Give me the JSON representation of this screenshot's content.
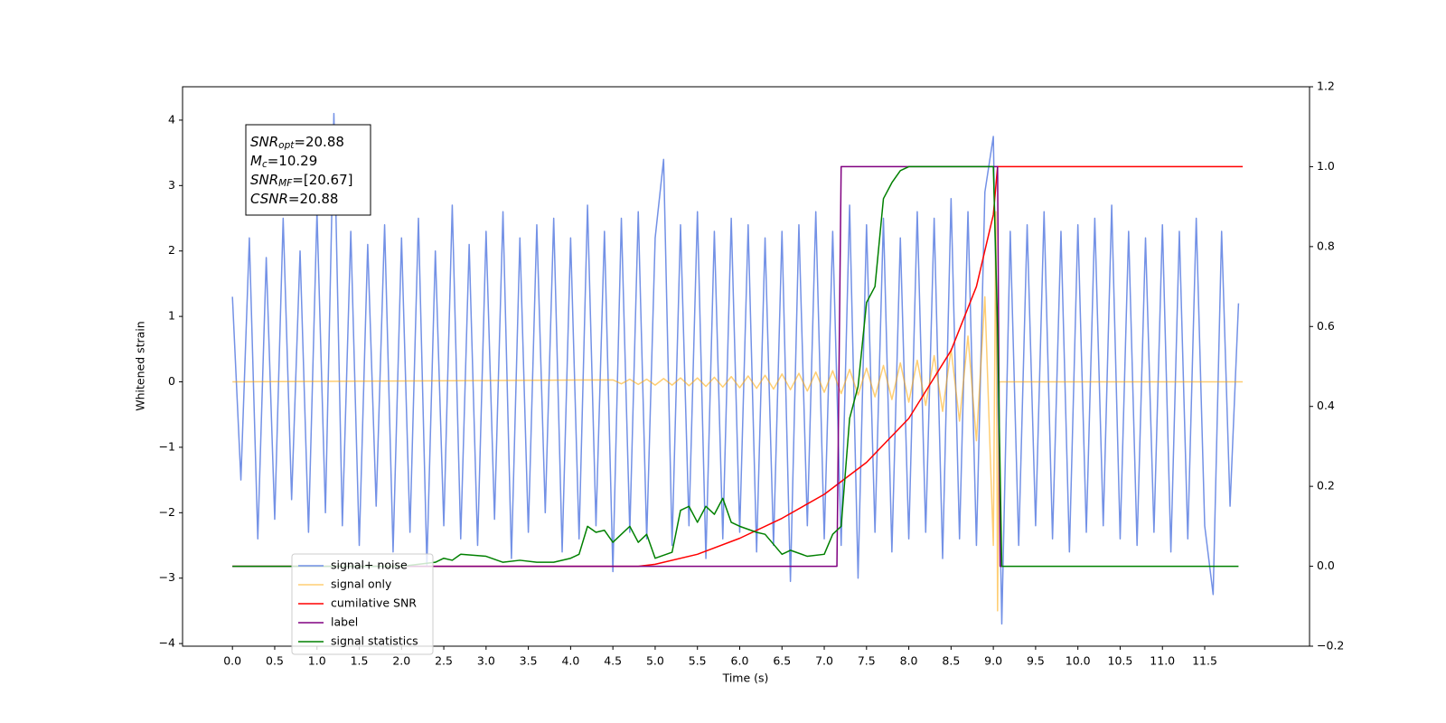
{
  "chart_data": {
    "type": "line",
    "xlabel": "Time (s)",
    "ylabel": "Whitened strain",
    "xlim": [
      -0.59,
      12.74
    ],
    "ylim": [
      -4.04,
      4.51
    ],
    "y2lim": [
      -0.2,
      1.2
    ],
    "xticks": [
      {
        "value": 0,
        "label": "0.0"
      },
      0.5,
      {
        "value": 1,
        "label": "1.0"
      },
      1.5,
      {
        "value": 2,
        "label": "2.0"
      },
      2.5,
      {
        "value": 3,
        "label": "3.0"
      },
      3.5,
      {
        "value": 4,
        "label": "4.0"
      },
      4.5,
      {
        "value": 5,
        "label": "5.0"
      },
      5.5,
      {
        "value": 6,
        "label": "6.0"
      },
      6.5,
      {
        "value": 7,
        "label": "7.0"
      },
      7.5,
      {
        "value": 8,
        "label": "8.0"
      },
      8.5,
      {
        "value": 9,
        "label": "9.0"
      },
      9.5,
      {
        "value": 10,
        "label": "10.0"
      },
      10.5,
      {
        "value": 11,
        "label": "11.0"
      },
      11.5
    ],
    "yticks": [
      {
        "value": -4,
        "label": "−4"
      },
      {
        "value": -3,
        "label": "−3"
      },
      {
        "value": -2,
        "label": "−2"
      },
      {
        "value": -1,
        "label": "−1"
      },
      0,
      1,
      2,
      3,
      4
    ],
    "y2ticks": [
      {
        "value": -0.2,
        "label": "−0.2"
      },
      {
        "value": 0,
        "label": "0.0"
      },
      0.2,
      0.4,
      0.6,
      0.8,
      {
        "value": 1,
        "label": "1.0"
      },
      1.2
    ],
    "annotation": [
      {
        "text": "SNR",
        "sub": "opt",
        "value": "=20.88"
      },
      {
        "text": "M",
        "sub": "c",
        "value": "=10.29"
      },
      {
        "text": "SNR",
        "sub": "MF",
        "value": "=[20.67]"
      },
      {
        "text": "CSNR",
        "value": "=20.88"
      }
    ],
    "series": [
      {
        "name": "signal+ noise",
        "color": "#7391e6",
        "alpha": 1,
        "x": [
          0.0,
          0.1,
          0.2,
          0.3,
          0.4,
          0.5,
          0.6,
          0.7,
          0.8,
          0.9,
          1.0,
          1.1,
          1.2,
          1.3,
          1.4,
          1.5,
          1.6,
          1.7,
          1.8,
          1.9,
          2.0,
          2.1,
          2.2,
          2.3,
          2.4,
          2.5,
          2.6,
          2.7,
          2.8,
          2.9,
          3.0,
          3.1,
          3.2,
          3.3,
          3.4,
          3.5,
          3.6,
          3.7,
          3.8,
          3.9,
          4.0,
          4.1,
          4.2,
          4.3,
          4.4,
          4.5,
          4.6,
          4.7,
          4.8,
          4.9,
          5.0,
          5.1,
          5.2,
          5.3,
          5.4,
          5.5,
          5.6,
          5.7,
          5.8,
          5.9,
          6.0,
          6.1,
          6.2,
          6.3,
          6.4,
          6.5,
          6.6,
          6.7,
          6.8,
          6.9,
          7.0,
          7.1,
          7.2,
          7.3,
          7.4,
          7.5,
          7.6,
          7.7,
          7.8,
          7.9,
          8.0,
          8.1,
          8.2,
          8.3,
          8.4,
          8.5,
          8.6,
          8.7,
          8.8,
          8.9,
          9.0,
          9.1,
          9.2,
          9.3,
          9.4,
          9.5,
          9.6,
          9.7,
          9.8,
          9.9,
          10.0,
          10.1,
          10.2,
          10.3,
          10.4,
          10.5,
          10.6,
          10.7,
          10.8,
          10.9,
          11.0,
          11.1,
          11.2,
          11.3,
          11.4,
          11.5,
          11.6,
          11.7,
          11.8,
          11.9
        ],
        "values": [
          1.3,
          -1.5,
          2.2,
          -2.4,
          1.9,
          -2.1,
          2.5,
          -1.8,
          2.0,
          -2.3,
          2.6,
          -2.0,
          4.1,
          -2.2,
          2.3,
          -2.5,
          2.1,
          -1.9,
          2.4,
          -2.6,
          2.2,
          -2.3,
          2.5,
          -2.8,
          2.0,
          -2.2,
          2.7,
          -2.4,
          2.1,
          -2.5,
          2.3,
          -2.1,
          2.6,
          -2.7,
          2.2,
          -2.3,
          2.4,
          -2.0,
          2.5,
          -2.6,
          2.2,
          -2.4,
          2.7,
          -2.2,
          2.3,
          -2.9,
          2.5,
          -2.3,
          2.6,
          -2.4,
          2.2,
          3.4,
          -2.5,
          2.4,
          -2.2,
          2.6,
          -2.7,
          2.3,
          -2.4,
          2.5,
          -2.3,
          2.4,
          -2.6,
          2.2,
          -2.5,
          2.3,
          -3.05,
          2.4,
          -2.2,
          2.6,
          -2.4,
          2.3,
          -2.5,
          2.7,
          -3.0,
          2.4,
          -2.3,
          2.5,
          -2.6,
          2.2,
          -2.4,
          2.6,
          -2.3,
          2.5,
          -2.7,
          2.8,
          -2.4,
          2.6,
          -2.5,
          2.9,
          3.75,
          -3.7,
          2.3,
          -2.5,
          2.4,
          -2.2,
          2.6,
          -2.4,
          2.3,
          -2.6,
          2.4,
          -2.3,
          2.5,
          -2.2,
          2.7,
          -2.4,
          2.3,
          -2.5,
          2.2,
          -2.3,
          2.4,
          -2.6,
          2.3,
          -2.4,
          2.5,
          -2.2,
          -3.25,
          2.3,
          -1.9,
          1.2
        ]
      },
      {
        "name": "signal only",
        "color": "#ffa500",
        "alpha": 0.55,
        "x": [
          0,
          4.5,
          4.6,
          4.7,
          4.8,
          4.9,
          5.0,
          5.1,
          5.2,
          5.3,
          5.4,
          5.5,
          5.6,
          5.7,
          5.8,
          5.9,
          6.0,
          6.1,
          6.2,
          6.3,
          6.4,
          6.5,
          6.6,
          6.7,
          6.8,
          6.9,
          7.0,
          7.1,
          7.2,
          7.3,
          7.4,
          7.5,
          7.6,
          7.7,
          7.8,
          7.9,
          8.0,
          8.1,
          8.2,
          8.3,
          8.4,
          8.5,
          8.6,
          8.7,
          8.8,
          8.9,
          9.0,
          9.03,
          9.05,
          9.07,
          11.95
        ],
        "values": [
          0,
          0.03,
          -0.03,
          0.04,
          -0.04,
          0.04,
          -0.05,
          0.05,
          -0.05,
          0.06,
          -0.06,
          0.06,
          -0.07,
          0.07,
          -0.08,
          0.08,
          -0.09,
          0.09,
          -0.1,
          0.1,
          -0.11,
          0.12,
          -0.12,
          0.13,
          -0.14,
          0.15,
          -0.16,
          0.17,
          -0.18,
          0.19,
          -0.2,
          0.21,
          -0.23,
          0.25,
          -0.27,
          0.29,
          -0.31,
          0.33,
          -0.36,
          0.4,
          -0.45,
          0.5,
          -0.6,
          0.7,
          -0.9,
          1.3,
          -2.5,
          2.6,
          -3.5,
          0,
          0
        ]
      },
      {
        "name": "cumilative SNR",
        "color": "#ff0000",
        "alpha": 1,
        "axis": "y2",
        "x": [
          0,
          4.8,
          5.0,
          5.5,
          6.0,
          6.5,
          7.0,
          7.5,
          8.0,
          8.5,
          8.8,
          9.0,
          9.05,
          11.95
        ],
        "values": [
          0,
          0,
          0.005,
          0.03,
          0.07,
          0.12,
          0.18,
          0.26,
          0.37,
          0.54,
          0.7,
          0.88,
          1.0,
          1.0
        ]
      },
      {
        "name": "label",
        "color": "#800080",
        "alpha": 1,
        "axis": "y2",
        "x": [
          0,
          7.15,
          7.2,
          9.05,
          9.08,
          9.1
        ],
        "values": [
          0,
          0,
          1,
          1,
          0,
          0
        ]
      },
      {
        "name": "signal statistics",
        "color": "#008000",
        "alpha": 1,
        "axis": "y2",
        "x": [
          0,
          2.0,
          2.2,
          2.4,
          2.5,
          2.6,
          2.7,
          3.0,
          3.2,
          3.4,
          3.6,
          3.8,
          4.0,
          4.1,
          4.2,
          4.3,
          4.4,
          4.5,
          4.6,
          4.7,
          4.8,
          4.9,
          5.0,
          5.2,
          5.3,
          5.4,
          5.5,
          5.6,
          5.7,
          5.8,
          5.9,
          6.0,
          6.2,
          6.3,
          6.5,
          6.6,
          6.8,
          7.0,
          7.1,
          7.2,
          7.3,
          7.4,
          7.5,
          7.6,
          7.7,
          7.8,
          7.9,
          8.0,
          8.5,
          9.0,
          9.05,
          9.1,
          11.9
        ],
        "values": [
          0,
          0,
          0.005,
          0.01,
          0.02,
          0.015,
          0.03,
          0.025,
          0.01,
          0.015,
          0.01,
          0.01,
          0.02,
          0.03,
          0.1,
          0.085,
          0.09,
          0.06,
          0.08,
          0.1,
          0.06,
          0.08,
          0.02,
          0.035,
          0.14,
          0.15,
          0.11,
          0.15,
          0.13,
          0.17,
          0.11,
          0.1,
          0.085,
          0.08,
          0.03,
          0.04,
          0.025,
          0.03,
          0.08,
          0.1,
          0.37,
          0.45,
          0.66,
          0.7,
          0.92,
          0.96,
          0.99,
          1.0,
          1.0,
          1.0,
          0.6,
          0.0,
          0.0
        ]
      }
    ]
  }
}
